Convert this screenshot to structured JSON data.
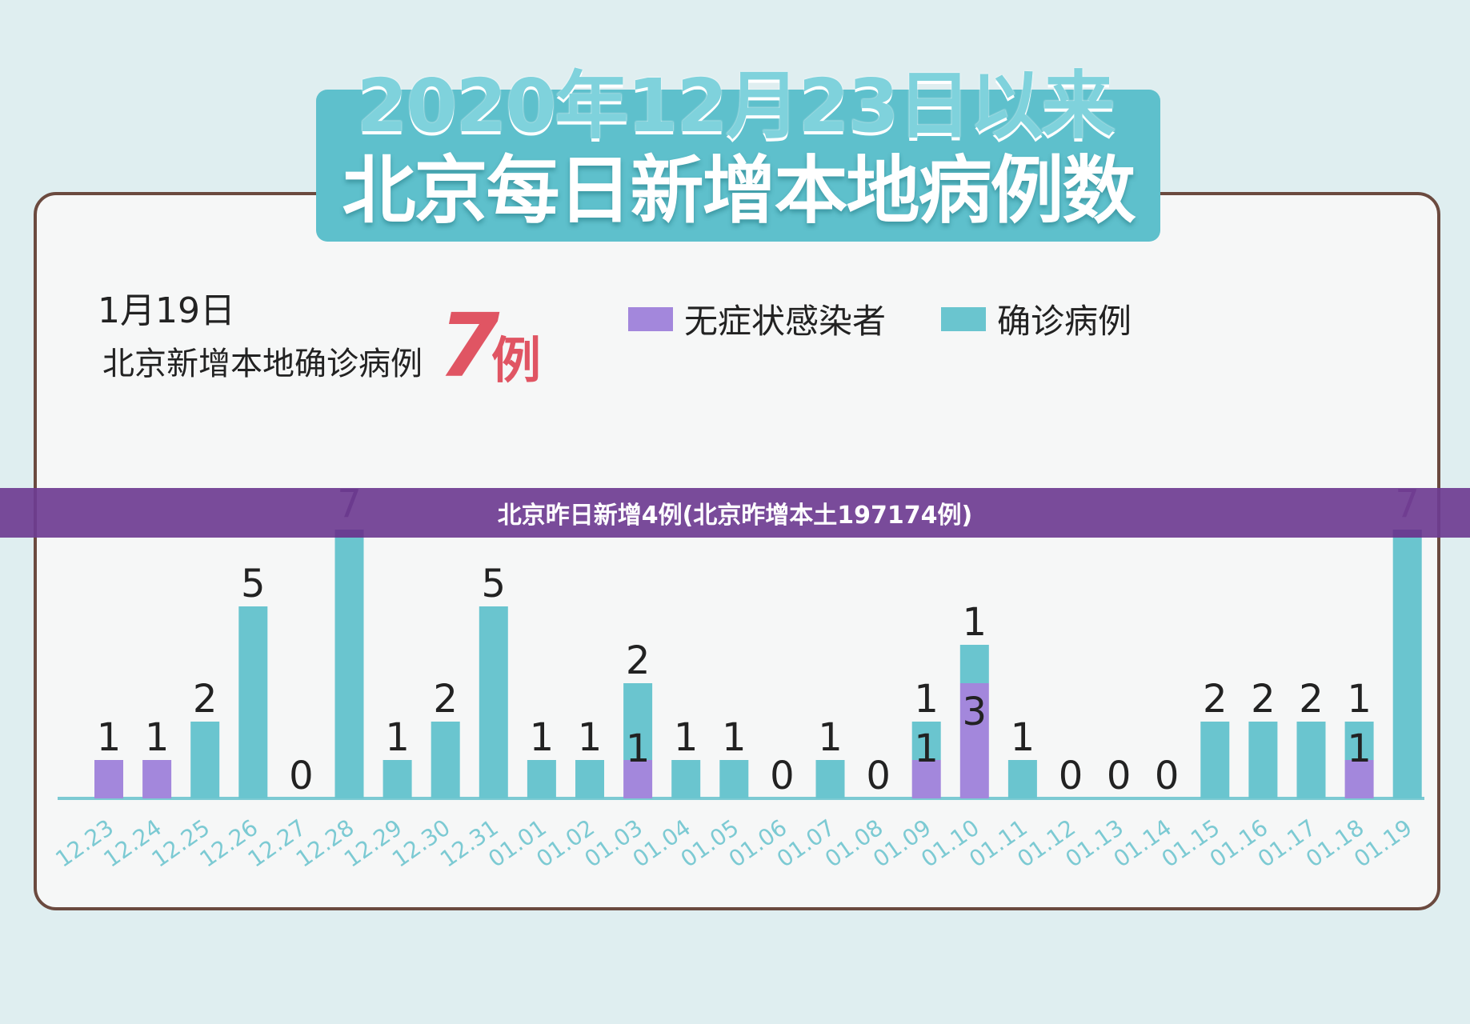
{
  "title": {
    "line1": "2020年12月23日以来",
    "line2": "北京每日新增本地病例数"
  },
  "annotation": {
    "date": "1月19日",
    "text": "北京新增本地确诊病例",
    "number": "7",
    "unit": "例"
  },
  "banner": {
    "text": "北京昨日新增4例(北京昨增本土197174例)"
  },
  "colors": {
    "asymptomatic": "#a387dc",
    "confirmed": "#6ac5cf",
    "axis": "#7ccad3",
    "highlight": "#e05563",
    "dark_label": "#4a2a6a"
  },
  "chart_data": {
    "type": "bar",
    "stacked": true,
    "legend_position": "top-right",
    "categories": [
      "12.23",
      "12.24",
      "12.25",
      "12.26",
      "12.27",
      "12.28",
      "12.29",
      "12.30",
      "12.31",
      "01.01",
      "01.02",
      "01.03",
      "01.04",
      "01.05",
      "01.06",
      "01.07",
      "01.08",
      "01.09",
      "01.10",
      "01.11",
      "01.12",
      "01.13",
      "01.14",
      "01.15",
      "01.16",
      "01.17",
      "01.18",
      "01.19"
    ],
    "series": [
      {
        "name": "无症状感染者",
        "color": "#a387dc",
        "values": [
          1,
          1,
          0,
          0,
          0,
          0,
          0,
          0,
          0,
          0,
          0,
          1,
          0,
          0,
          0,
          0,
          0,
          1,
          3,
          0,
          0,
          0,
          0,
          0,
          0,
          0,
          1,
          0
        ]
      },
      {
        "name": "确诊病例",
        "color": "#6ac5cf",
        "values": [
          0,
          0,
          2,
          5,
          0,
          7,
          1,
          2,
          5,
          1,
          1,
          2,
          1,
          1,
          0,
          1,
          0,
          1,
          1,
          1,
          0,
          0,
          0,
          2,
          2,
          2,
          1,
          7
        ]
      }
    ],
    "bar_labels": [
      {
        "seg": [
          1
        ],
        "top": "1"
      },
      {
        "seg": [
          1
        ],
        "top": "1"
      },
      {
        "seg": [],
        "top": "2"
      },
      {
        "seg": [],
        "top": "5"
      },
      {
        "seg": [],
        "top": "0"
      },
      {
        "seg": [],
        "top": "7"
      },
      {
        "seg": [],
        "top": "1"
      },
      {
        "seg": [],
        "top": "2"
      },
      {
        "seg": [],
        "top": "5"
      },
      {
        "seg": [],
        "top": "1"
      },
      {
        "seg": [],
        "top": "1"
      },
      {
        "seg": [
          "1"
        ],
        "top": "2"
      },
      {
        "seg": [],
        "top": "1"
      },
      {
        "seg": [],
        "top": "1"
      },
      {
        "seg": [],
        "top": "0"
      },
      {
        "seg": [],
        "top": "1"
      },
      {
        "seg": [],
        "top": "0"
      },
      {
        "seg": [
          "1"
        ],
        "top": "1"
      },
      {
        "seg": [
          "3"
        ],
        "top": "1"
      },
      {
        "seg": [],
        "top": "1"
      },
      {
        "seg": [],
        "top": "0"
      },
      {
        "seg": [],
        "top": "0"
      },
      {
        "seg": [],
        "top": "0"
      },
      {
        "seg": [],
        "top": "2"
      },
      {
        "seg": [],
        "top": "2"
      },
      {
        "seg": [],
        "top": "2"
      },
      {
        "seg": [
          "1"
        ],
        "top": "1"
      },
      {
        "seg": [],
        "top": "7"
      }
    ]
  }
}
